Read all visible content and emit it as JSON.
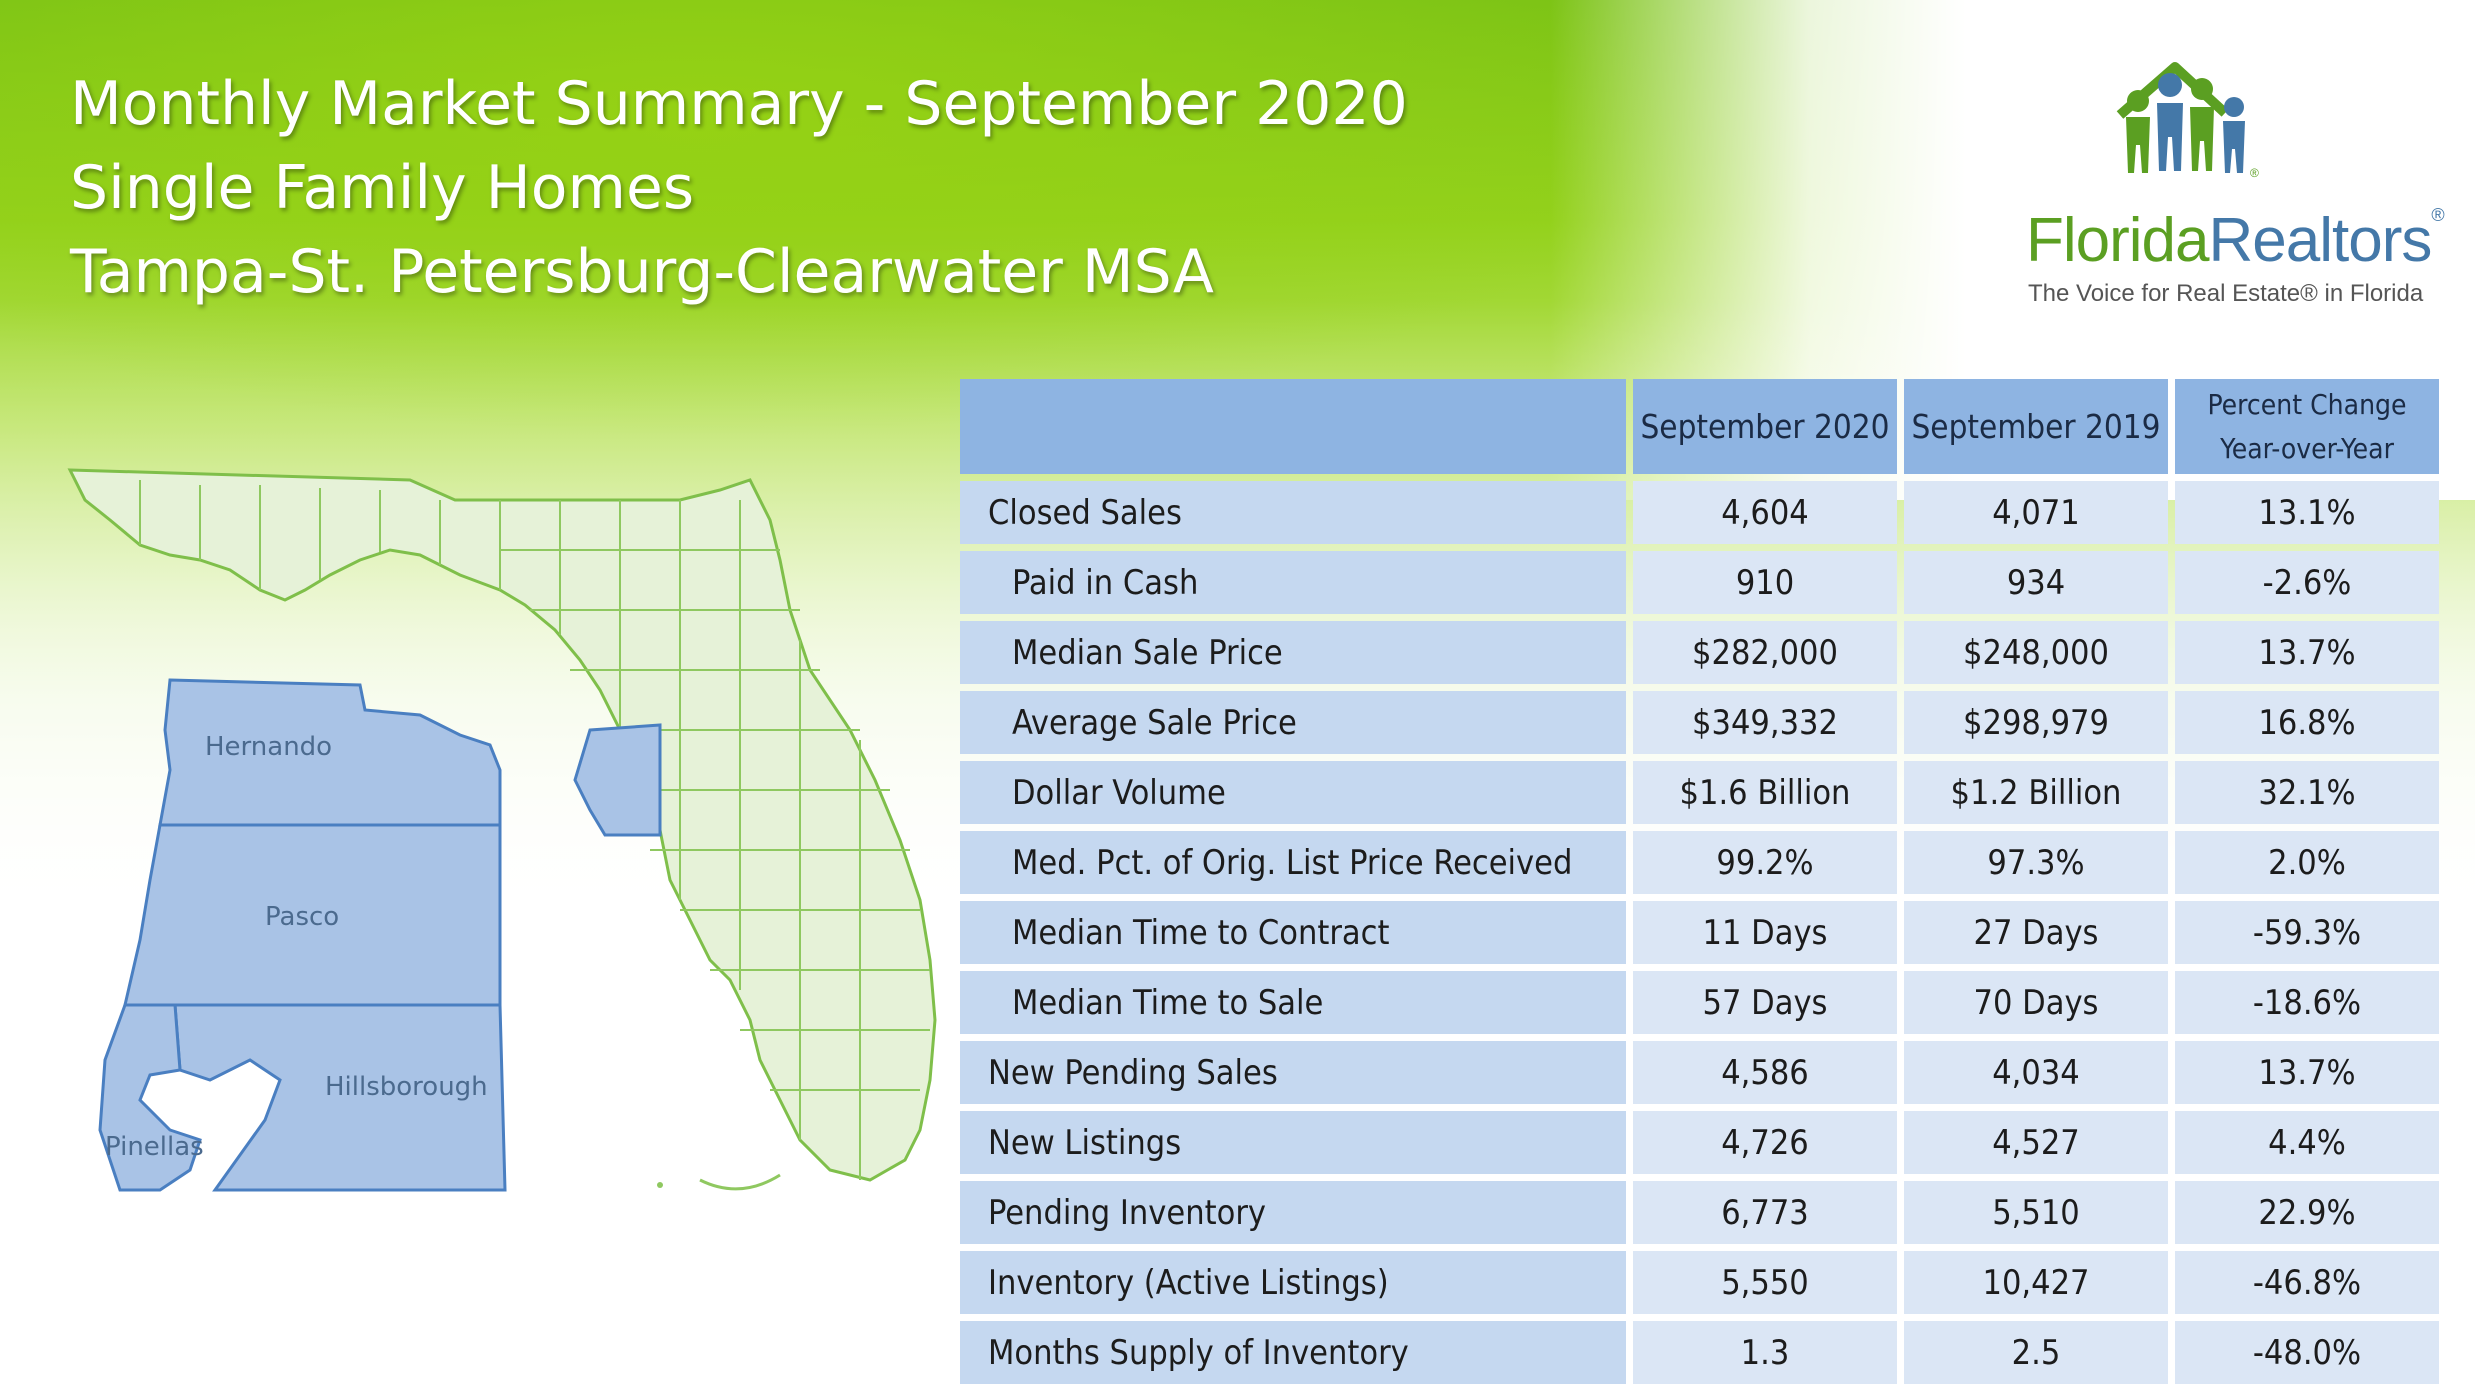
{
  "header": {
    "title_line1": "Monthly Market Summary - September 2020",
    "title_line2": "Single Family Homes",
    "title_line3": "Tampa-St. Petersburg-Clearwater MSA"
  },
  "logo": {
    "word_part1": "Florida",
    "word_part2": "Realtors",
    "registered": "®",
    "tagline": "The Voice for Real Estate® in Florida",
    "brand_green": "#5b9f22",
    "brand_blue": "#4478a8"
  },
  "map": {
    "counties": [
      "Hernando",
      "Pasco",
      "Hillsborough",
      "Pinellas"
    ],
    "highlight_color": "#a9c3e6",
    "state_fill": "#e6f2d8"
  },
  "table": {
    "columns": [
      "",
      "September 2020",
      "September 2019",
      "Percent Change\nYear-over-Year"
    ],
    "column_line1": "Percent Change",
    "column_line2": "Year-over-Year",
    "rows": [
      {
        "label": "Closed Sales",
        "sep2020": "4,604",
        "sep2019": "4,071",
        "change": "13.1%",
        "indent": false
      },
      {
        "label": "Paid in Cash",
        "sep2020": "910",
        "sep2019": "934",
        "change": "-2.6%",
        "indent": true
      },
      {
        "label": "Median Sale Price",
        "sep2020": "$282,000",
        "sep2019": "$248,000",
        "change": "13.7%",
        "indent": true
      },
      {
        "label": "Average Sale Price",
        "sep2020": "$349,332",
        "sep2019": "$298,979",
        "change": "16.8%",
        "indent": true
      },
      {
        "label": "Dollar Volume",
        "sep2020": "$1.6 Billion",
        "sep2019": "$1.2 Billion",
        "change": "32.1%",
        "indent": true
      },
      {
        "label": "Med. Pct. of Orig. List Price Received",
        "sep2020": "99.2%",
        "sep2019": "97.3%",
        "change": "2.0%",
        "indent": true
      },
      {
        "label": "Median Time to Contract",
        "sep2020": "11 Days",
        "sep2019": "27 Days",
        "change": "-59.3%",
        "indent": true
      },
      {
        "label": "Median Time to Sale",
        "sep2020": "57 Days",
        "sep2019": "70 Days",
        "change": "-18.6%",
        "indent": true
      },
      {
        "label": "New Pending Sales",
        "sep2020": "4,586",
        "sep2019": "4,034",
        "change": "13.7%",
        "indent": false
      },
      {
        "label": "New Listings",
        "sep2020": "4,726",
        "sep2019": "4,527",
        "change": "4.4%",
        "indent": false
      },
      {
        "label": "Pending Inventory",
        "sep2020": "6,773",
        "sep2019": "5,510",
        "change": "22.9%",
        "indent": false
      },
      {
        "label": "Inventory (Active Listings)",
        "sep2020": "5,550",
        "sep2019": "10,427",
        "change": "-46.8%",
        "indent": false
      },
      {
        "label": "Months Supply of Inventory",
        "sep2020": "1.3",
        "sep2019": "2.5",
        "change": "-48.0%",
        "indent": false
      }
    ]
  }
}
